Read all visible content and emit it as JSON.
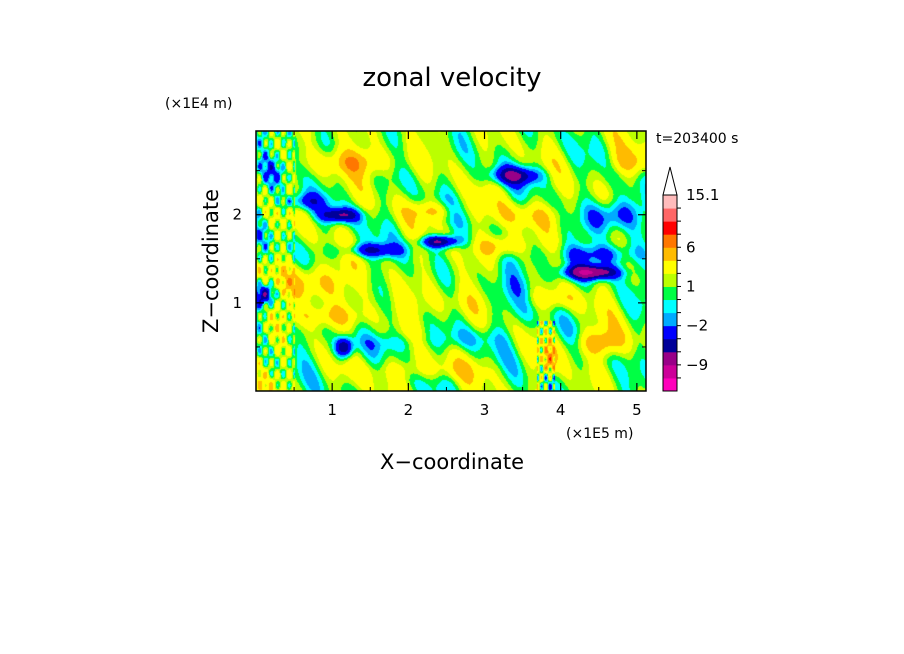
{
  "chart_data": {
    "type": "heatmap",
    "title": "zonal velocity",
    "xlabel": "X−coordinate",
    "ylabel": "Z−coordinate",
    "x_unit": "(×1E5 m)",
    "y_unit": "(×1E4 m)",
    "time_label": "t=203400 s",
    "xlim": [
      0,
      5.12
    ],
    "ylim": [
      0,
      2.95
    ],
    "x_ticks": [
      {
        "value": 1,
        "label": "1"
      },
      {
        "value": 2,
        "label": "2"
      },
      {
        "value": 3,
        "label": "3"
      },
      {
        "value": 4,
        "label": "4"
      },
      {
        "value": 5,
        "label": "5"
      }
    ],
    "y_ticks": [
      {
        "value": 1,
        "label": "1"
      },
      {
        "value": 2,
        "label": "2"
      }
    ],
    "colorbar": {
      "levels": [
        -15,
        -12,
        -9,
        -6,
        -4,
        -2,
        -1,
        0,
        1,
        2,
        4,
        6,
        9,
        12,
        15.1
      ],
      "colors": [
        "#ff00bb",
        "#cc0099",
        "#990088",
        "#000099",
        "#0000ff",
        "#00aaff",
        "#00ffff",
        "#00ff44",
        "#bbff00",
        "#ffff00",
        "#ffbb00",
        "#ff7700",
        "#ff0000",
        "#ff6666",
        "#ffbbbb"
      ],
      "extend_max_color": "#ffffff",
      "labeled_levels": [
        {
          "value": 15.1,
          "label": "15.1"
        },
        {
          "value": 6,
          "label": "6"
        },
        {
          "value": 1,
          "label": "1"
        },
        {
          "value": -2,
          "label": "−2"
        },
        {
          "value": -9,
          "label": "−9"
        }
      ]
    },
    "features": [
      {
        "type": "jet",
        "x": 4.4,
        "z": 1.35,
        "value": -10,
        "sx": 0.35,
        "sz": 0.08
      },
      {
        "type": "jet",
        "x": 2.4,
        "z": 1.7,
        "value": -8,
        "sx": 0.25,
        "sz": 0.07
      },
      {
        "type": "jet",
        "x": 1.1,
        "z": 2.0,
        "value": -7,
        "sx": 0.25,
        "sz": 0.08
      },
      {
        "type": "jet",
        "x": 3.4,
        "z": 2.45,
        "value": -6,
        "sx": 0.35,
        "sz": 0.1
      },
      {
        "type": "jet",
        "x": 1.15,
        "z": 0.5,
        "value": -8,
        "sx": 0.12,
        "sz": 0.12
      },
      {
        "type": "jet",
        "x": 0.1,
        "z": 1.1,
        "value": -7,
        "sx": 0.12,
        "sz": 0.12
      },
      {
        "type": "jet",
        "x": 1.5,
        "z": 1.6,
        "value": -5,
        "sx": 0.4,
        "sz": 0.08
      },
      {
        "type": "jet",
        "x": 0.6,
        "z": 2.15,
        "value": -4,
        "sx": 0.3,
        "sz": 0.1
      },
      {
        "type": "jet",
        "x": 4.7,
        "z": 2.0,
        "value": -5,
        "sx": 0.35,
        "sz": 0.18
      },
      {
        "type": "jet",
        "x": 0.25,
        "z": 2.5,
        "value": -3,
        "sx": 0.2,
        "sz": 0.2
      },
      {
        "type": "jet",
        "x": 4.5,
        "z": 1.55,
        "value": -4,
        "sx": 0.5,
        "sz": 0.12
      },
      {
        "type": "jet",
        "x": 2.3,
        "z": 2.05,
        "value": 3,
        "sx": 0.3,
        "sz": 0.1
      },
      {
        "type": "jet",
        "x": 1.3,
        "z": 2.6,
        "value": 4,
        "sx": 0.5,
        "sz": 0.15
      },
      {
        "type": "jet",
        "x": 3.2,
        "z": 1.65,
        "value": 4,
        "sx": 0.3,
        "sz": 0.12
      },
      {
        "type": "jet",
        "x": 0.8,
        "z": 1.25,
        "value": 4,
        "sx": 0.4,
        "sz": 0.2
      },
      {
        "type": "jet",
        "x": 4.5,
        "z": 0.55,
        "value": 5,
        "sx": 0.3,
        "sz": 0.15
      },
      {
        "type": "jet",
        "x": 3.85,
        "z": 0.35,
        "value": 4,
        "sx": 0.08,
        "sz": 0.15
      },
      {
        "type": "jet",
        "x": 0.9,
        "z": 0.85,
        "value": 3,
        "sx": 0.5,
        "sz": 0.12
      },
      {
        "type": "jet",
        "x": 2.5,
        "z": 1.0,
        "value": 1.5,
        "sx": 0.8,
        "sz": 0.2
      },
      {
        "type": "jet",
        "x": 4.9,
        "z": 2.6,
        "value": 3,
        "sx": 0.3,
        "sz": 0.15
      },
      {
        "type": "jet",
        "x": 3.9,
        "z": 1.05,
        "value": 2.5,
        "sx": 0.4,
        "sz": 0.12
      },
      {
        "type": "jet",
        "x": 3.6,
        "z": 2.0,
        "value": 2.5,
        "sx": 0.5,
        "sz": 0.15
      },
      {
        "type": "jet",
        "x": 2.2,
        "z": 0.25,
        "value": 2,
        "sx": 0.8,
        "sz": 0.12
      },
      {
        "type": "jet",
        "x": 1.8,
        "z": 0.55,
        "value": -1.5,
        "sx": 0.5,
        "sz": 0.1
      },
      {
        "type": "jet",
        "x": 2.8,
        "z": 0.6,
        "value": -1.5,
        "sx": 0.5,
        "sz": 0.12
      },
      {
        "type": "jet",
        "x": 3.4,
        "z": 1.1,
        "value": -2,
        "sx": 0.4,
        "sz": 0.35
      }
    ]
  }
}
